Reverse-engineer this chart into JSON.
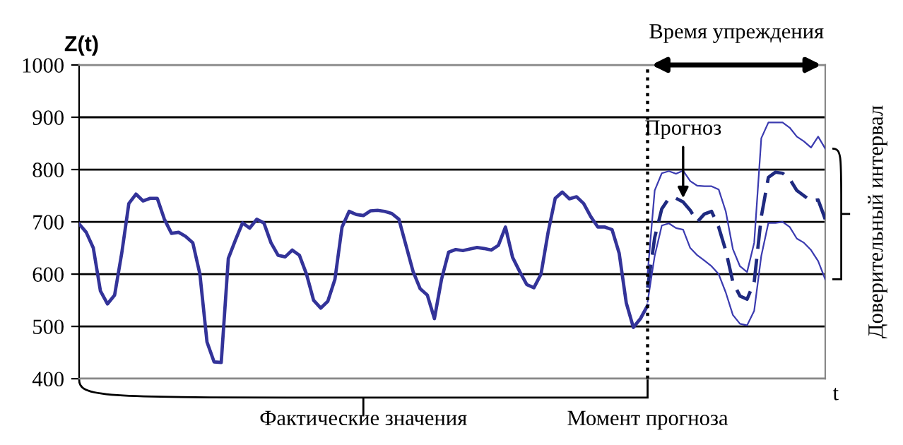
{
  "chart_data": {
    "type": "line",
    "ylabel": "Z(t)",
    "xlabel": "t",
    "ylim": [
      400,
      1000
    ],
    "yticks": [
      400,
      500,
      600,
      700,
      800,
      900,
      1000
    ],
    "grid": "y",
    "tick_labels": "y",
    "categories": [
      null,
      null,
      null,
      null,
      null,
      null,
      null,
      null,
      null,
      null,
      null,
      null,
      null,
      null,
      null,
      null,
      null,
      null,
      null,
      null,
      null,
      null,
      null,
      null,
      null,
      null,
      null,
      null,
      null,
      null,
      null,
      null,
      null,
      null,
      null,
      null,
      null,
      null,
      null,
      null,
      null,
      null,
      null,
      null,
      null,
      null,
      null,
      null,
      null,
      null,
      null,
      null,
      null,
      null,
      null,
      null,
      null,
      null,
      null,
      null,
      null,
      null,
      null,
      null,
      null,
      null,
      null,
      null,
      null,
      null,
      null,
      null,
      null,
      null,
      null,
      null,
      null,
      null,
      null,
      null,
      null,
      null,
      null,
      null,
      null,
      null,
      null,
      null,
      null,
      null,
      null,
      null,
      null,
      null,
      null,
      null,
      null,
      null,
      null,
      null,
      null,
      null,
      null,
      null,
      null,
      null
    ],
    "series": [
      {
        "color": "#333399",
        "line_style": "solid",
        "values": [
          696,
          680,
          650,
          568,
          543,
          560,
          640,
          735,
          753,
          740,
          745,
          745,
          705,
          678,
          680,
          672,
          660,
          600,
          470,
          432,
          431,
          630,
          665,
          698,
          688,
          705,
          698,
          660,
          636,
          633,
          646,
          636,
          600,
          550,
          535,
          548,
          590,
          690,
          720,
          714,
          712,
          721,
          722,
          720,
          716,
          705,
          655,
          605,
          572,
          560,
          515,
          590,
          642,
          647,
          645,
          648,
          651,
          649,
          646,
          655,
          690,
          632,
          605,
          580,
          574,
          600,
          680,
          745,
          757,
          744,
          748,
          735,
          710,
          690,
          690,
          685,
          640,
          545,
          498,
          515,
          540,
          null,
          null,
          null,
          null,
          null,
          null,
          null,
          null,
          null,
          null,
          null,
          null,
          null,
          null,
          null,
          null,
          null,
          null,
          null,
          null,
          null,
          null,
          null,
          null,
          null
        ]
      },
      {
        "color": "#1f2a80",
        "line_style": "dashed",
        "values": [
          null,
          null,
          null,
          null,
          null,
          null,
          null,
          null,
          null,
          null,
          null,
          null,
          null,
          null,
          null,
          null,
          null,
          null,
          null,
          null,
          null,
          null,
          null,
          null,
          null,
          null,
          null,
          null,
          null,
          null,
          null,
          null,
          null,
          null,
          null,
          null,
          null,
          null,
          null,
          null,
          null,
          null,
          null,
          null,
          null,
          null,
          null,
          null,
          null,
          null,
          null,
          null,
          null,
          null,
          null,
          null,
          null,
          null,
          null,
          null,
          null,
          null,
          null,
          null,
          null,
          null,
          null,
          null,
          null,
          null,
          null,
          null,
          null,
          null,
          null,
          null,
          null,
          null,
          null,
          null,
          574,
          670,
          725,
          745,
          745,
          738,
          722,
          700,
          715,
          720,
          690,
          645,
          585,
          558,
          552,
          585,
          710,
          785,
          795,
          793,
          782,
          760,
          750,
          740,
          742,
          705
        ]
      },
      {
        "color": "#3b3bb0",
        "line_style": "solid",
        "values": [
          null,
          null,
          null,
          null,
          null,
          null,
          null,
          null,
          null,
          null,
          null,
          null,
          null,
          null,
          null,
          null,
          null,
          null,
          null,
          null,
          null,
          null,
          null,
          null,
          null,
          null,
          null,
          null,
          null,
          null,
          null,
          null,
          null,
          null,
          null,
          null,
          null,
          null,
          null,
          null,
          null,
          null,
          null,
          null,
          null,
          null,
          null,
          null,
          null,
          null,
          null,
          null,
          null,
          null,
          null,
          null,
          null,
          null,
          null,
          null,
          null,
          null,
          null,
          null,
          null,
          null,
          null,
          null,
          null,
          null,
          null,
          null,
          null,
          null,
          null,
          null,
          null,
          null,
          null,
          null,
          601,
          760,
          793,
          797,
          792,
          798,
          778,
          769,
          768,
          768,
          762,
          720,
          648,
          615,
          604,
          660,
          860,
          890,
          890,
          890,
          880,
          863,
          854,
          842,
          863,
          840
        ]
      },
      {
        "color": "#3b3bb0",
        "line_style": "solid",
        "values": [
          null,
          null,
          null,
          null,
          null,
          null,
          null,
          null,
          null,
          null,
          null,
          null,
          null,
          null,
          null,
          null,
          null,
          null,
          null,
          null,
          null,
          null,
          null,
          null,
          null,
          null,
          null,
          null,
          null,
          null,
          null,
          null,
          null,
          null,
          null,
          null,
          null,
          null,
          null,
          null,
          null,
          null,
          null,
          null,
          null,
          null,
          null,
          null,
          null,
          null,
          null,
          null,
          null,
          null,
          null,
          null,
          null,
          null,
          null,
          null,
          null,
          null,
          null,
          null,
          null,
          null,
          null,
          null,
          null,
          null,
          null,
          null,
          null,
          null,
          null,
          null,
          null,
          null,
          null,
          null,
          547,
          635,
          693,
          697,
          688,
          685,
          650,
          636,
          626,
          615,
          600,
          565,
          522,
          505,
          502,
          530,
          635,
          698,
          698,
          700,
          690,
          668,
          660,
          646,
          625,
          590
        ]
      }
    ],
    "annotations": [
      "Время упреждения",
      "Прогноз",
      "Доверительный интервал",
      "Фактические значения",
      "Момент прогноза"
    ]
  }
}
